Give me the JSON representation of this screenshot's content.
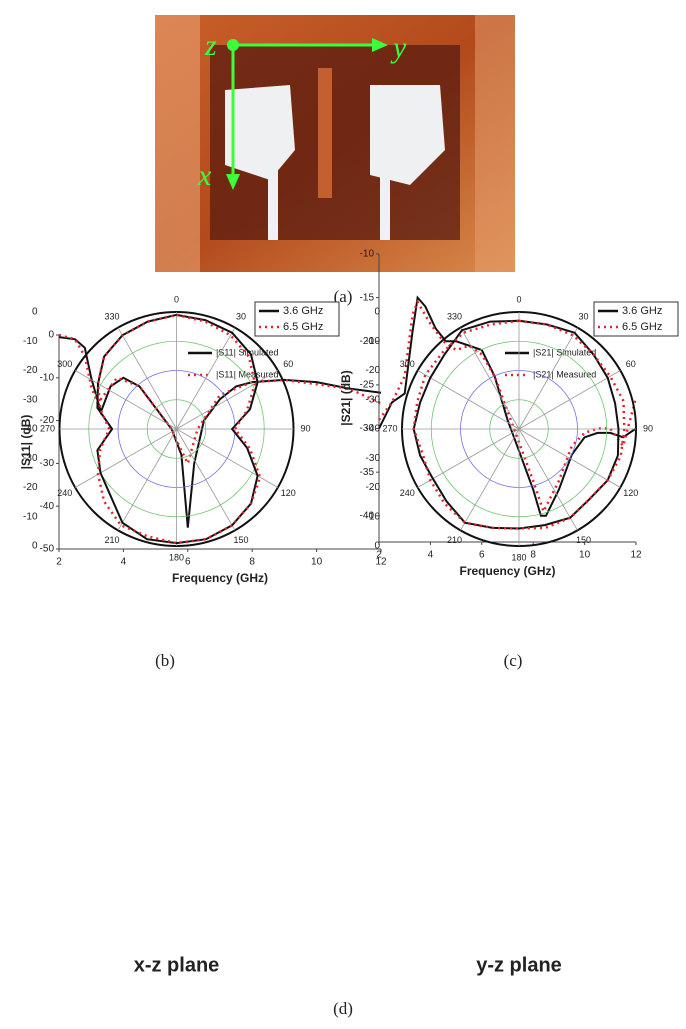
{
  "photo": {
    "labels": {
      "z": "z",
      "y": "y",
      "x": "x"
    }
  },
  "captions": [
    "(a)",
    "(b)",
    "(c)",
    "(d)"
  ],
  "chart_data": [
    {
      "type": "line",
      "xlabel": "Frequency (GHz)",
      "ylabel": "|S11| (dB)",
      "xlim": [
        2,
        12
      ],
      "xticks": [
        2,
        4,
        6,
        8,
        10,
        12
      ],
      "ylim": [
        -50,
        0
      ],
      "yticks": [
        0,
        -10,
        -20,
        -30,
        -40,
        -50
      ],
      "series": [
        {
          "name": "|S11| Simulated",
          "color": "#111111",
          "line_style": "solid",
          "x": [
            2,
            2.5,
            2.8,
            3.0,
            3.3,
            3.6,
            4,
            4.5,
            5,
            5.5,
            5.8,
            6,
            6.2,
            6.5,
            7,
            7.5,
            8,
            9,
            10,
            11,
            12
          ],
          "values": [
            -0.5,
            -1,
            -3,
            -10,
            -18,
            -12,
            -10,
            -12,
            -17,
            -22,
            -28,
            -45,
            -30,
            -20,
            -15,
            -12,
            -11,
            -10.5,
            -11,
            -12.5,
            -13.5
          ]
        },
        {
          "name": "|S11| Measured",
          "color": "#e8202a",
          "line_style": "dotted",
          "x": [
            2,
            2.5,
            2.8,
            3.0,
            3.2,
            3.5,
            3.8,
            4.5,
            5,
            5.5,
            5.8,
            6,
            6.3,
            7,
            8,
            9,
            10,
            11,
            12
          ],
          "values": [
            0,
            -1,
            -5,
            -12,
            -16,
            -13,
            -10,
            -12,
            -17,
            -22,
            -27,
            -30,
            -22,
            -14,
            -11,
            -10.5,
            -11.5,
            -12.5,
            -16
          ]
        }
      ]
    },
    {
      "type": "line",
      "xlabel": "Frequency (GHz)",
      "ylabel": "|S21| (dB)",
      "xlim": [
        2,
        12
      ],
      "xticks": [
        2,
        4,
        6,
        8,
        10,
        12
      ],
      "ylim": [
        -43,
        -10
      ],
      "yticks": [
        -10,
        -15,
        -20,
        -25,
        -30,
        -35,
        -40
      ],
      "series": [
        {
          "name": "|S21| Simulated",
          "color": "#111111",
          "line_style": "solid",
          "x": [
            2,
            2.5,
            3,
            3.3,
            3.5,
            3.8,
            4.2,
            4.6,
            5,
            5.5,
            6,
            6.5,
            7,
            7.5,
            8,
            8.3,
            8.5,
            9,
            9.5,
            10,
            10.5,
            11,
            11.5,
            12
          ],
          "values": [
            -30,
            -27,
            -26,
            -19,
            -15,
            -16,
            -18.5,
            -20,
            -20,
            -20.5,
            -21,
            -24,
            -29,
            -33,
            -37,
            -40,
            -40,
            -37,
            -33,
            -31,
            -30.5,
            -30.5,
            -31,
            -30
          ]
        },
        {
          "name": "|S21| Measured",
          "color": "#e8202a",
          "line_style": "dotted",
          "x": [
            2,
            2.5,
            3,
            3.3,
            3.5,
            4,
            4.5,
            5,
            5.5,
            6,
            6.5,
            7,
            7.5,
            8,
            8.4,
            9,
            9.5,
            10,
            10.5,
            11,
            11.5,
            12
          ],
          "values": [
            -29,
            -27,
            -24,
            -17,
            -15.5,
            -18,
            -20,
            -21,
            -20.5,
            -21.5,
            -24,
            -28,
            -32,
            -36,
            -39.5,
            -36,
            -32,
            -30.5,
            -30,
            -30,
            -32,
            -26.5
          ]
        }
      ]
    },
    {
      "type": "polar",
      "title": "x-z plane",
      "theta": [
        0,
        15,
        30,
        45,
        60,
        75,
        90,
        105,
        120,
        135,
        150,
        165,
        180,
        195,
        210,
        225,
        240,
        255,
        270,
        285,
        300,
        315,
        330,
        345
      ],
      "rlim": [
        -40,
        0
      ],
      "rticks": [
        0,
        -10,
        -20,
        -30,
        -40
      ],
      "thetaticks": [
        0,
        30,
        60,
        90,
        120,
        150,
        180,
        210,
        240,
        270,
        300,
        330
      ],
      "series": [
        {
          "name": "3.6 GHz",
          "color": "#111111",
          "line_style": "solid",
          "values": [
            -1,
            -1.5,
            -2,
            -4,
            -8,
            -14,
            -21,
            -15,
            -8,
            -4,
            -2,
            -1,
            -1,
            -1,
            -3,
            -8,
            -10,
            -12,
            -18,
            -12,
            -9,
            -5,
            -3,
            -2
          ]
        },
        {
          "name": "6.5 GHz",
          "color": "#e8202a",
          "line_style": "dotted",
          "values": [
            -1,
            -2,
            -3,
            -5,
            -9,
            -15,
            -20,
            -14,
            -7,
            -4,
            -2,
            -1,
            -1,
            -2,
            -2,
            -5,
            -9,
            -13,
            -17,
            -13,
            -9,
            -5,
            -3,
            -2
          ]
        }
      ]
    },
    {
      "type": "polar",
      "title": "y-z plane",
      "theta": [
        0,
        15,
        30,
        45,
        60,
        75,
        90,
        105,
        120,
        135,
        150,
        165,
        180,
        195,
        210,
        225,
        240,
        255,
        270,
        285,
        300,
        315,
        330,
        345
      ],
      "rlim": [
        -40,
        0
      ],
      "rticks": [
        0,
        -10,
        -20,
        -30,
        -40
      ],
      "thetaticks": [
        0,
        30,
        60,
        90,
        120,
        150,
        180,
        210,
        240,
        270,
        300,
        330
      ],
      "series": [
        {
          "name": "3.6 GHz",
          "color": "#111111",
          "line_style": "solid",
          "values": [
            -3,
            -3,
            -2,
            -4,
            -5,
            -6,
            -6,
            -5,
            -5,
            -6,
            -5,
            -6,
            -6,
            -5,
            -3,
            -5,
            -6,
            -5,
            -4,
            -5,
            -5,
            -4,
            -1,
            -2
          ]
        },
        {
          "name": "6.5 GHz",
          "color": "#e8202a",
          "line_style": "dotted",
          "values": [
            -3,
            -3,
            -3,
            -4,
            -4,
            -3,
            -4,
            -4,
            -5,
            -6,
            -5,
            -5,
            -6,
            -5,
            -3,
            -4,
            -5,
            -6,
            -4,
            -4,
            -3,
            -3,
            -2,
            -3
          ]
        }
      ]
    }
  ]
}
